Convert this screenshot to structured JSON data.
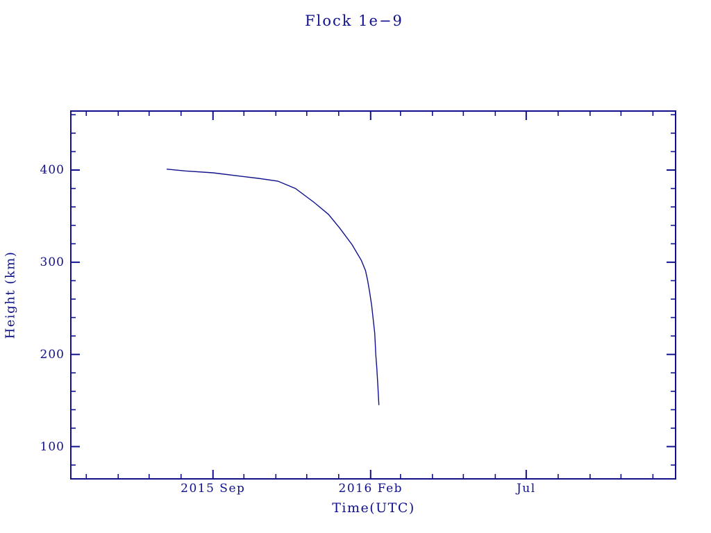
{
  "title": "Flock 1e−9",
  "colors": {
    "ink": "#10108C",
    "background": "#FFFFFF"
  },
  "chart_data": {
    "type": "line",
    "title": "Flock 1e−9",
    "xlabel": "Time(UTC)",
    "ylabel": "Height (km)",
    "grid": false,
    "legend": null,
    "line_color": "#10108C",
    "axis_color": "#10108C",
    "xlim": [
      "2015-04-16",
      "2016-11-23"
    ],
    "ylim": [
      65,
      464
    ],
    "x_major_ticks": [
      {
        "date": "2015-09-01",
        "label": "2015 Sep"
      },
      {
        "date": "2016-02-01",
        "label": "2016 Feb"
      },
      {
        "date": "2016-07-01",
        "label": "Jul"
      }
    ],
    "x_minor_tick_interval": "1 month",
    "y_major_ticks": [
      100,
      200,
      300,
      400
    ],
    "y_minor_tick_interval": 20,
    "series": [
      {
        "name": "Flock 1e−9 height",
        "points": [
          [
            "2015-07-18",
            401
          ],
          [
            "2015-08-05",
            399
          ],
          [
            "2015-09-01",
            397
          ],
          [
            "2015-09-30",
            393
          ],
          [
            "2015-10-15",
            391
          ],
          [
            "2015-11-03",
            388
          ],
          [
            "2015-11-20",
            380
          ],
          [
            "2015-12-08",
            365
          ],
          [
            "2015-12-22",
            352
          ],
          [
            "2016-01-02",
            337
          ],
          [
            "2016-01-14",
            319
          ],
          [
            "2016-01-23",
            302
          ],
          [
            "2016-01-27",
            291
          ],
          [
            "2016-01-29",
            281
          ],
          [
            "2016-01-31",
            268
          ],
          [
            "2016-02-02",
            253
          ],
          [
            "2016-02-05",
            223
          ],
          [
            "2016-02-06",
            200
          ],
          [
            "2016-02-07",
            185
          ],
          [
            "2016-02-08",
            166
          ],
          [
            "2016-02-09",
            145
          ]
        ]
      }
    ]
  }
}
